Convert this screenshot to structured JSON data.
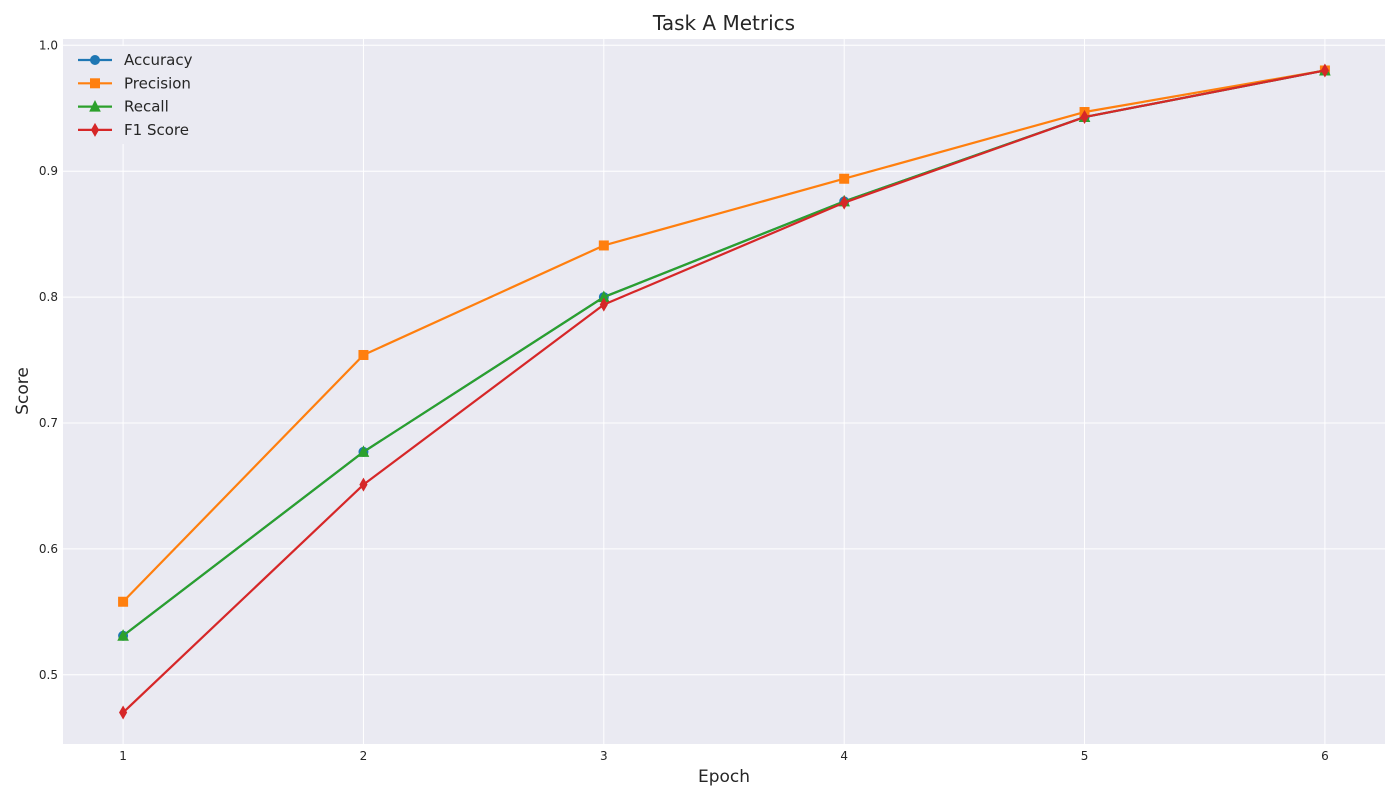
{
  "chart_data": {
    "type": "line",
    "title": "Task A Metrics",
    "xlabel": "Epoch",
    "ylabel": "Score",
    "x": [
      1,
      2,
      3,
      4,
      5,
      6
    ],
    "x_ticks": [
      "1",
      "2",
      "3",
      "4",
      "5",
      "6"
    ],
    "xlim": [
      0.75,
      6.25
    ],
    "ylim": [
      0.445,
      1.005
    ],
    "y_ticks": [
      "0.5",
      "0.6",
      "0.7",
      "0.8",
      "0.9",
      "1.0"
    ],
    "y_tick_values": [
      0.5,
      0.6,
      0.7,
      0.8,
      0.9,
      1.0
    ],
    "grid": true,
    "legend_position": "top-left",
    "background_color": "#eaeaf2",
    "series": [
      {
        "name": "Accuracy",
        "color": "#1f77b4",
        "marker": "circle",
        "values": [
          0.531,
          0.677,
          0.8,
          0.876,
          0.943,
          0.98
        ]
      },
      {
        "name": "Precision",
        "color": "#ff7f0e",
        "marker": "square",
        "values": [
          0.558,
          0.754,
          0.841,
          0.894,
          0.947,
          0.98
        ]
      },
      {
        "name": "Recall",
        "color": "#2ca02c",
        "marker": "triangle",
        "values": [
          0.531,
          0.677,
          0.8,
          0.876,
          0.943,
          0.98
        ]
      },
      {
        "name": "F1 Score",
        "color": "#d62728",
        "marker": "diamond",
        "values": [
          0.47,
          0.651,
          0.794,
          0.875,
          0.943,
          0.98
        ]
      }
    ]
  }
}
